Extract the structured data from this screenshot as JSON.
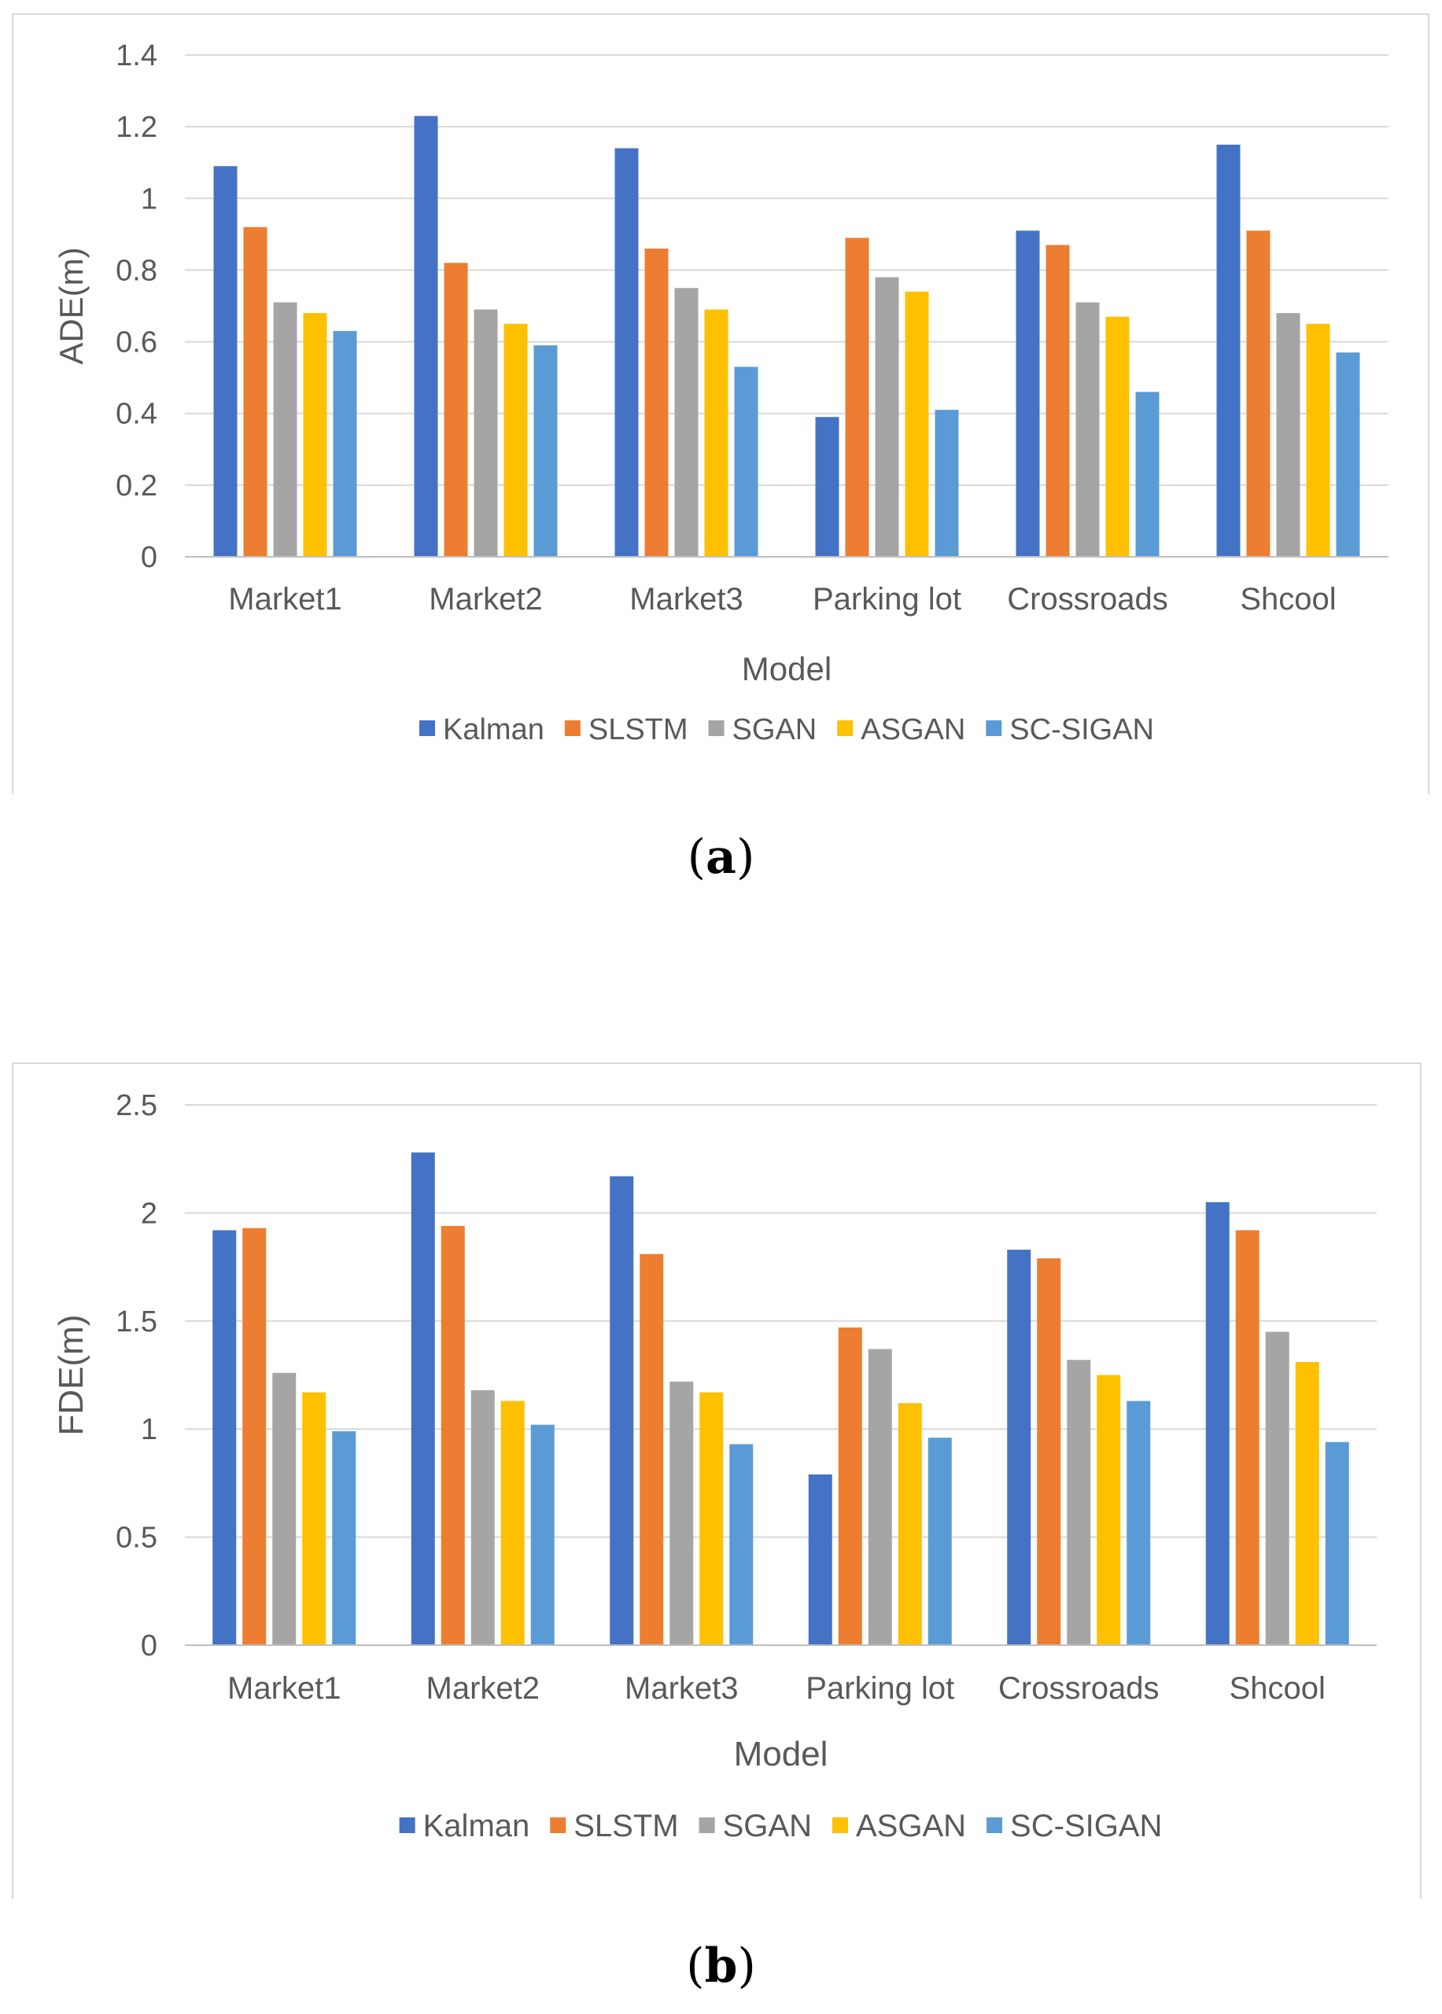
{
  "chart_data": [
    {
      "type": "bar",
      "panel_label": "a",
      "xlabel": "Model",
      "ylabel": "ADE(m)",
      "ylim": [
        0,
        1.4
      ],
      "yticks": [
        "0",
        "0.2",
        "0.4",
        "0.6",
        "0.8",
        "1",
        "1.2",
        "1.4"
      ],
      "ytick_values": [
        0,
        0.2,
        0.4,
        0.6,
        0.8,
        1.0,
        1.2,
        1.4
      ],
      "grid": true,
      "legend_position": "bottom",
      "categories": [
        "Market1",
        "Market2",
        "Market3",
        "Parking lot",
        "Crossroads",
        "Shcool"
      ],
      "series": [
        {
          "name": "Kalman",
          "color": "#4472C4",
          "values": [
            1.09,
            1.23,
            1.14,
            0.39,
            0.91,
            1.15
          ]
        },
        {
          "name": "SLSTM",
          "color": "#ED7D31",
          "values": [
            0.92,
            0.82,
            0.86,
            0.89,
            0.87,
            0.91
          ]
        },
        {
          "name": "SGAN",
          "color": "#A5A5A5",
          "values": [
            0.71,
            0.69,
            0.75,
            0.78,
            0.71,
            0.68
          ]
        },
        {
          "name": "ASGAN",
          "color": "#FFC000",
          "values": [
            0.68,
            0.65,
            0.69,
            0.74,
            0.67,
            0.65
          ]
        },
        {
          "name": "SC-SIGAN",
          "color": "#5B9BD5",
          "values": [
            0.63,
            0.59,
            0.53,
            0.41,
            0.46,
            0.57
          ]
        }
      ]
    },
    {
      "type": "bar",
      "panel_label": "b",
      "xlabel": "Model",
      "ylabel": "FDE(m)",
      "ylim": [
        0,
        2.5
      ],
      "yticks": [
        "0",
        "0.5",
        "1",
        "1.5",
        "2",
        "2.5"
      ],
      "ytick_values": [
        0,
        0.5,
        1.0,
        1.5,
        2.0,
        2.5
      ],
      "grid": true,
      "legend_position": "bottom",
      "categories": [
        "Market1",
        "Market2",
        "Market3",
        "Parking lot",
        "Crossroads",
        "Shcool"
      ],
      "series": [
        {
          "name": "Kalman",
          "color": "#4472C4",
          "values": [
            1.92,
            2.28,
            2.17,
            0.79,
            1.83,
            2.05
          ]
        },
        {
          "name": "SLSTM",
          "color": "#ED7D31",
          "values": [
            1.93,
            1.94,
            1.81,
            1.47,
            1.79,
            1.92
          ]
        },
        {
          "name": "SGAN",
          "color": "#A5A5A5",
          "values": [
            1.26,
            1.18,
            1.22,
            1.37,
            1.32,
            1.45
          ]
        },
        {
          "name": "ASGAN",
          "color": "#FFC000",
          "values": [
            1.17,
            1.13,
            1.17,
            1.12,
            1.25,
            1.31
          ]
        },
        {
          "name": "SC-SIGAN",
          "color": "#5B9BD5",
          "values": [
            0.99,
            1.02,
            0.93,
            0.96,
            1.13,
            0.94
          ]
        }
      ]
    }
  ]
}
